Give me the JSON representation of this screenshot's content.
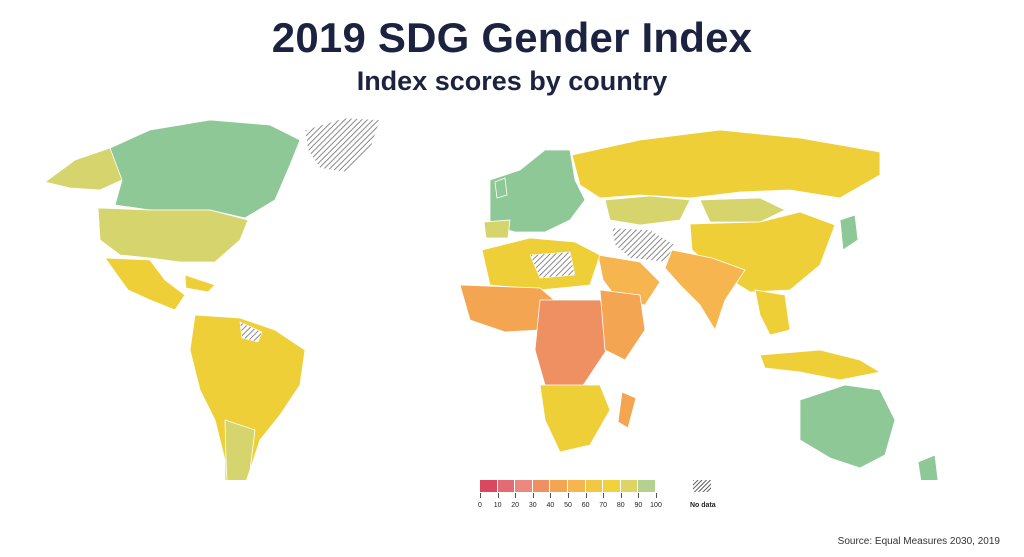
{
  "title": "2019 SDG Gender Index",
  "subtitle": "Index scores by country",
  "legend": {
    "ticks": [
      "0",
      "10",
      "20",
      "30",
      "40",
      "50",
      "60",
      "70",
      "80",
      "90",
      "100"
    ],
    "colors": [
      "#d9485f",
      "#e36b73",
      "#ea8a7e",
      "#ee9061",
      "#f4a552",
      "#f6b54e",
      "#f2c842",
      "#efd23c",
      "#dcd465",
      "#b5d18f",
      "#5fc2b5"
    ],
    "no_data_label": "No data"
  },
  "map_colors": {
    "north_america": "#8ec897",
    "alaska": "#d6d46c",
    "usa": "#d6d46c",
    "greenland_no_data": "#b9b9b9",
    "central_america": "#efcf38",
    "south_america": "#efcf38",
    "argentina": "#d6d46c",
    "europe": "#8ec897",
    "russia": "#efcf38",
    "kazakhstan": "#d6d46c",
    "china": "#efcf38",
    "india": "#f6b54e",
    "africa_north": "#efcf38",
    "africa_west": "#f4a552",
    "africa_central": "#ee9061",
    "southern_africa": "#efcf38",
    "australia": "#8ec897",
    "southeast_asia": "#efcf38",
    "no_data": "#9a9a9a"
  },
  "source": "Source: Equal Measures 2030, 2019"
}
